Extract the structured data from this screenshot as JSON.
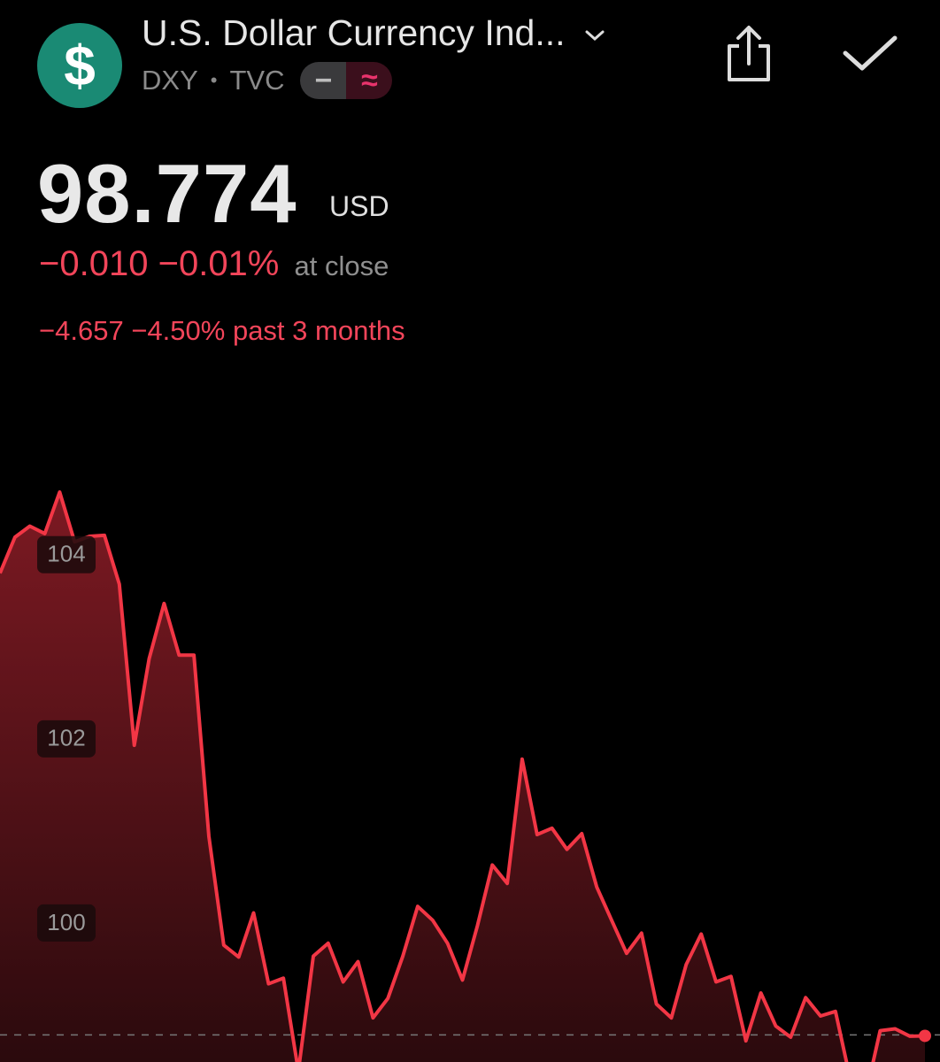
{
  "header": {
    "icon": "$",
    "title": "U.S. Dollar Currency Ind...",
    "symbol": "DXY",
    "separator": "•",
    "exchange": "TVC",
    "badges": [
      "−",
      "≈"
    ]
  },
  "quote": {
    "price": "98.774",
    "currency": "USD",
    "change": "−0.010",
    "change_percent": "−0.01%",
    "status": "at close",
    "period_change": "−4.657",
    "period_change_percent": "−4.50%",
    "period": "past 3 months"
  },
  "chart_data": {
    "type": "area",
    "color": "#f23645",
    "values": [
      103.8,
      104.19,
      104.31,
      104.23,
      104.68,
      104.14,
      104.2,
      104.21,
      103.68,
      101.93,
      102.87,
      103.47,
      102.91,
      102.91,
      100.94,
      99.76,
      99.63,
      100.11,
      99.34,
      99.4,
      98.39,
      99.64,
      99.78,
      99.36,
      99.58,
      98.97,
      99.18,
      99.64,
      100.18,
      100.03,
      99.78,
      99.38,
      99.97,
      100.63,
      100.43,
      101.78,
      100.96,
      101.03,
      100.8,
      100.97,
      100.39,
      100.03,
      99.67,
      99.89,
      99.12,
      98.97,
      99.55,
      99.88,
      99.36,
      99.42,
      98.72,
      99.24,
      98.88,
      98.76,
      99.19,
      98.99,
      99.04,
      98.3,
      98.11,
      98.83,
      98.85,
      98.77,
      98.774
    ],
    "ylim": [
      98.49,
      106.18
    ],
    "yticks": [
      100,
      102,
      104
    ],
    "reference_line": 98.784
  }
}
